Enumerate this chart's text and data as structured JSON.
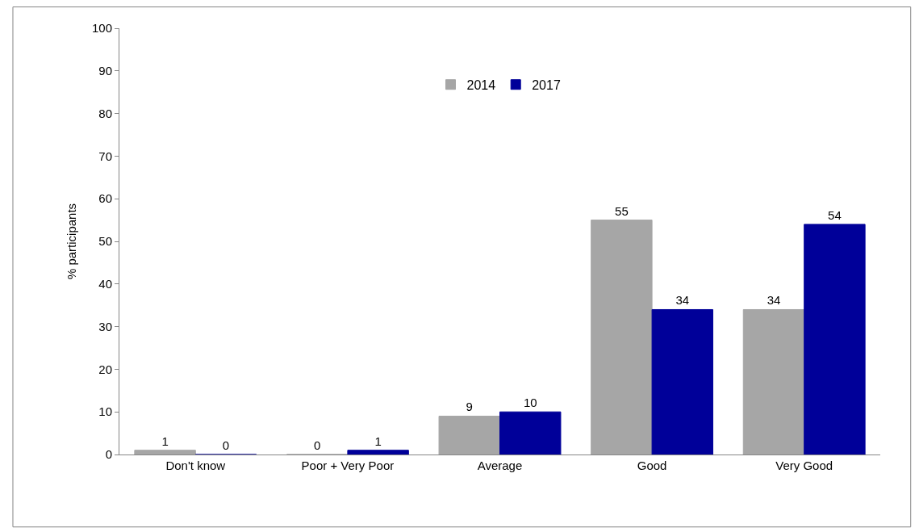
{
  "chart_data": {
    "type": "bar",
    "ylabel": "% participants",
    "categories": [
      "Don't know",
      "Poor + Very Poor",
      "Average",
      "Good",
      "Very Good"
    ],
    "series": [
      {
        "name": "2014",
        "color": "#a6a6a6",
        "values": [
          1,
          0,
          9,
          55,
          34
        ]
      },
      {
        "name": "2017",
        "color": "#000099",
        "values": [
          0,
          1,
          10,
          34,
          54
        ]
      }
    ],
    "ylim": [
      0,
      100
    ],
    "yticks": [
      0,
      10,
      20,
      30,
      40,
      50,
      60,
      70,
      80,
      90,
      100
    ],
    "data_labels": true,
    "legend": "top"
  }
}
